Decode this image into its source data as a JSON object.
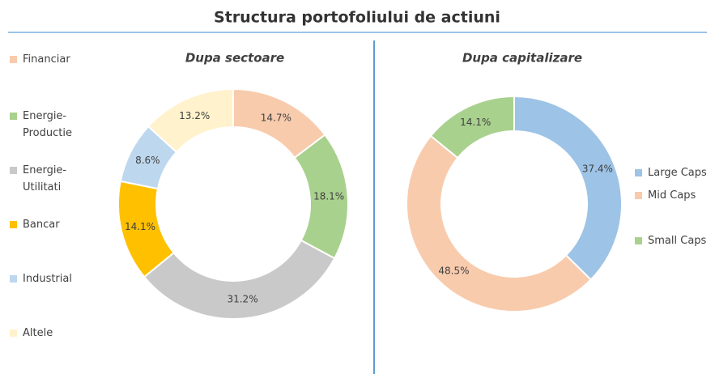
{
  "title": "Structura portofoliului de actiuni",
  "chart_data": [
    {
      "type": "donut",
      "title": "Dupa sectoare",
      "categories": [
        "Financiar",
        "Energie-Productie",
        "Energie-Utilitati",
        "Bancar",
        "Industrial",
        "Altele"
      ],
      "values": [
        14.7,
        18.1,
        31.2,
        14.1,
        8.6,
        13.2
      ],
      "value_labels": [
        "14.7%",
        "18.1%",
        "31.2%",
        "14.1%",
        "8.6%",
        "13.2%"
      ],
      "colors": [
        "#f8cbad",
        "#a9d18e",
        "#c9c9c9",
        "#ffc000",
        "#bdd7ee",
        "#fff2cc"
      ],
      "legend": "left"
    },
    {
      "type": "donut",
      "title": "Dupa capitalizare",
      "categories": [
        "Large Caps",
        "Mid Caps",
        "Small Caps"
      ],
      "values": [
        37.4,
        48.5,
        14.1
      ],
      "value_labels": [
        "37.4%",
        "48.5%",
        "14.1%"
      ],
      "colors": [
        "#9dc3e6",
        "#f8cbad",
        "#a9d18e"
      ],
      "legend": "right"
    }
  ]
}
